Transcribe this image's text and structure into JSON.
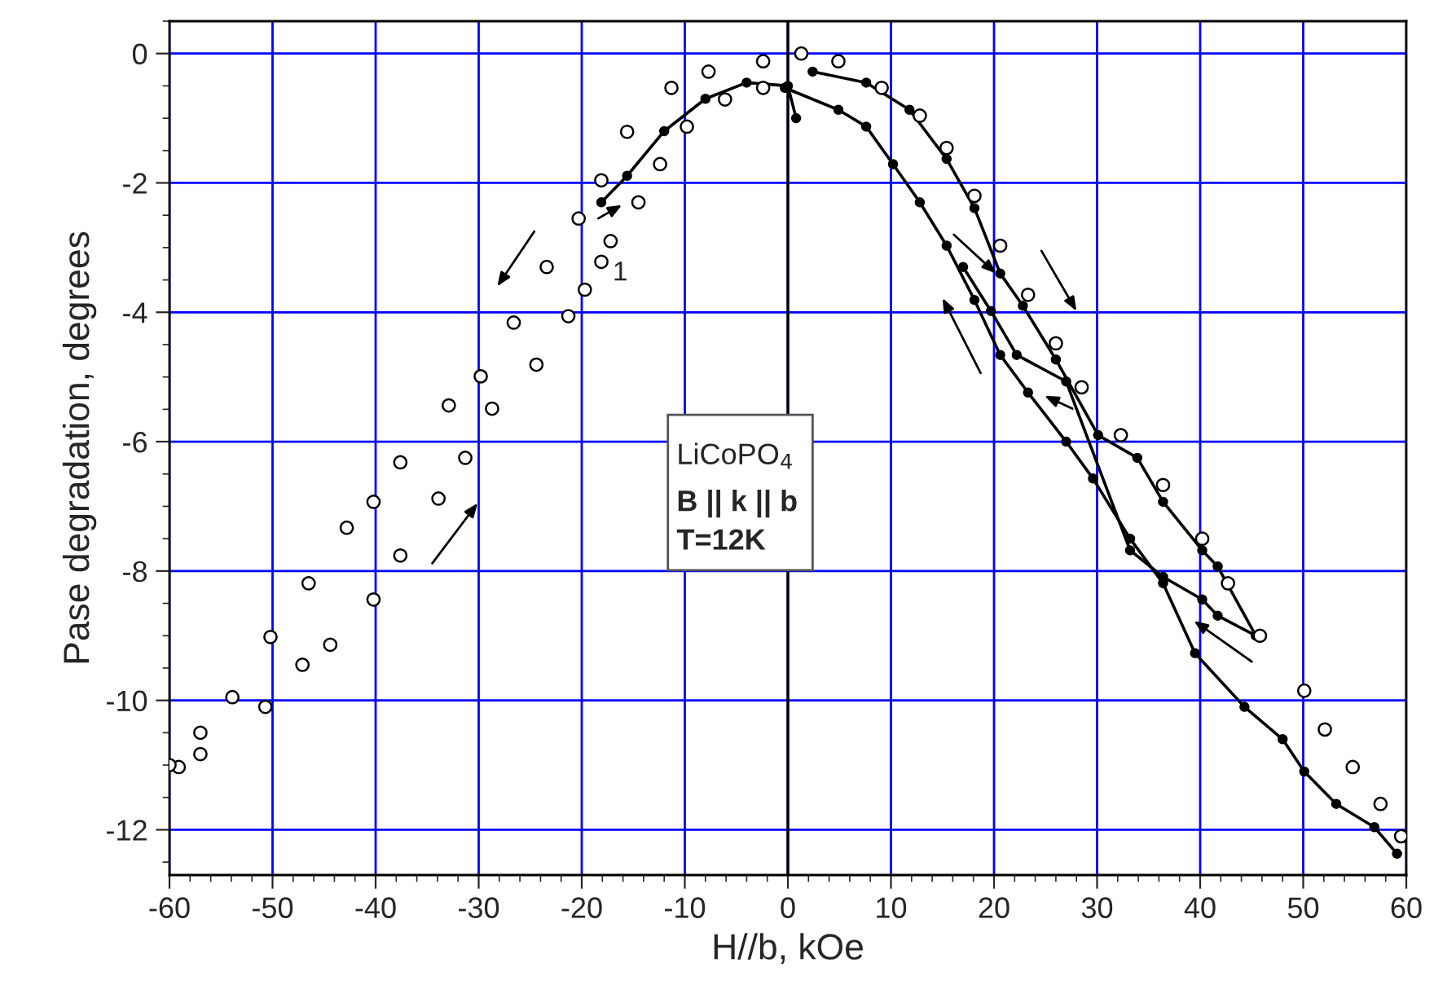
{
  "chart_data": {
    "type": "scatter",
    "xlabel": "H//b, kOe",
    "ylabel": "Pase degradation, degrees",
    "xlim": [
      -60,
      60
    ],
    "ylim": [
      -12.7,
      0.5
    ],
    "xticks": [
      -60,
      -50,
      -40,
      -30,
      -20,
      -10,
      0,
      10,
      20,
      30,
      40,
      50,
      60
    ],
    "yticks": [
      -12,
      -10,
      -8,
      -6,
      -4,
      -2,
      0
    ],
    "grid": true,
    "marker": "circle",
    "ref_lines": [
      {
        "axis": "x",
        "value": 0,
        "color": "#000000"
      }
    ],
    "annotations": [
      {
        "text": "1",
        "x": -17.3,
        "y": -3.4
      },
      "LiCoPO$_{4}$",
      "B || k || b",
      "T=12K"
    ],
    "series": [
      {
        "color": "#000000",
        "x": [
          59.5,
          57.5,
          54.8,
          52.1,
          50.1,
          45.8,
          42.7,
          40.2,
          36.4,
          32.3,
          28.5,
          26,
          23.3,
          20.6,
          18.1,
          15.4,
          12.8,
          9.1,
          4.9,
          1.3,
          -2.4,
          -7.7,
          -11.3,
          -15.6,
          -18.1,
          -20.3,
          -23.4,
          -26.6,
          -29.8,
          -32.9,
          -37.6,
          -40.2,
          -42.8,
          -46.5,
          -50.2,
          -53.9,
          -57,
          -59.1,
          -60
        ],
        "values": [
          -12.1,
          -11.6,
          -11.03,
          -10.45,
          -9.85,
          -9.0,
          -8.19,
          -7.5,
          -6.67,
          -5.9,
          -5.16,
          -4.48,
          -3.73,
          -2.97,
          -2.2,
          -1.46,
          -0.96,
          -0.53,
          -0.12,
          0,
          -0.12,
          -0.28,
          -0.53,
          -1.21,
          -1.96,
          -2.55,
          -3.3,
          -4.16,
          -4.99,
          -5.44,
          -6.32,
          -6.93,
          -7.33,
          -8.19,
          -9.02,
          -9.95,
          -10.5,
          -11.03,
          -11.0
        ]
      },
      {
        "color": "#000000",
        "x": [
          -57,
          -50.7,
          -47.1,
          -44.4,
          -40.2,
          -37.6,
          -33.9,
          -31.3,
          -28.7,
          -24.4,
          -21.3,
          -19.7,
          -18.1,
          -17.2,
          -14.5,
          -12.4,
          -9.8,
          -6.1,
          -2.4
        ],
        "values": [
          -10.83,
          -10.1,
          -9.45,
          -9.14,
          -8.44,
          -7.76,
          -6.88,
          -6.25,
          -5.49,
          -4.81,
          -4.06,
          -3.65,
          -3.22,
          -2.9,
          -2.3,
          -1.71,
          -1.13,
          -0.71,
          -0.53
        ]
      },
      {
        "type": "line",
        "color": "#000000",
        "x": [
          -18.1,
          -15.6,
          -12,
          -8,
          -4,
          0,
          0.8
        ],
        "values": [
          -2.3,
          -1.89,
          -1.2,
          -0.7,
          -0.45,
          -0.5,
          -1.0
        ]
      },
      {
        "type": "line",
        "color": "#000000",
        "x": [
          2.4,
          7.6,
          11.8,
          15.4,
          18.1,
          20.6,
          22.8,
          26,
          30.1,
          33.9,
          36.4,
          40.2,
          41.7,
          45.4,
          41.7,
          40.2,
          36.4,
          33.2,
          27,
          22.2,
          19.7,
          17
        ],
        "values": [
          -0.28,
          -0.45,
          -0.87,
          -1.63,
          -2.39,
          -3.4,
          -3.9,
          -4.73,
          -5.9,
          -6.25,
          -6.93,
          -7.68,
          -7.93,
          -9.0,
          -8.69,
          -8.44,
          -8.09,
          -7.68,
          -5.07,
          -4.66,
          -3.98,
          -3.3
        ]
      },
      {
        "type": "line",
        "color": "#000000",
        "x": [
          -0.3,
          4.9,
          7.6,
          10.2,
          12.8,
          15.4,
          18.1,
          20.6,
          23.3,
          27,
          29.6,
          33.2,
          36.4,
          39.5,
          44.3,
          48,
          50.1,
          53.2,
          56.9,
          59.1
        ],
        "values": [
          -0.53,
          -0.87,
          -1.13,
          -1.71,
          -2.3,
          -2.97,
          -3.81,
          -4.66,
          -5.24,
          -6.0,
          -6.57,
          -7.5,
          -8.19,
          -9.27,
          -10.1,
          -10.6,
          -11.1,
          -11.6,
          -11.96,
          -12.37
        ]
      }
    ]
  }
}
